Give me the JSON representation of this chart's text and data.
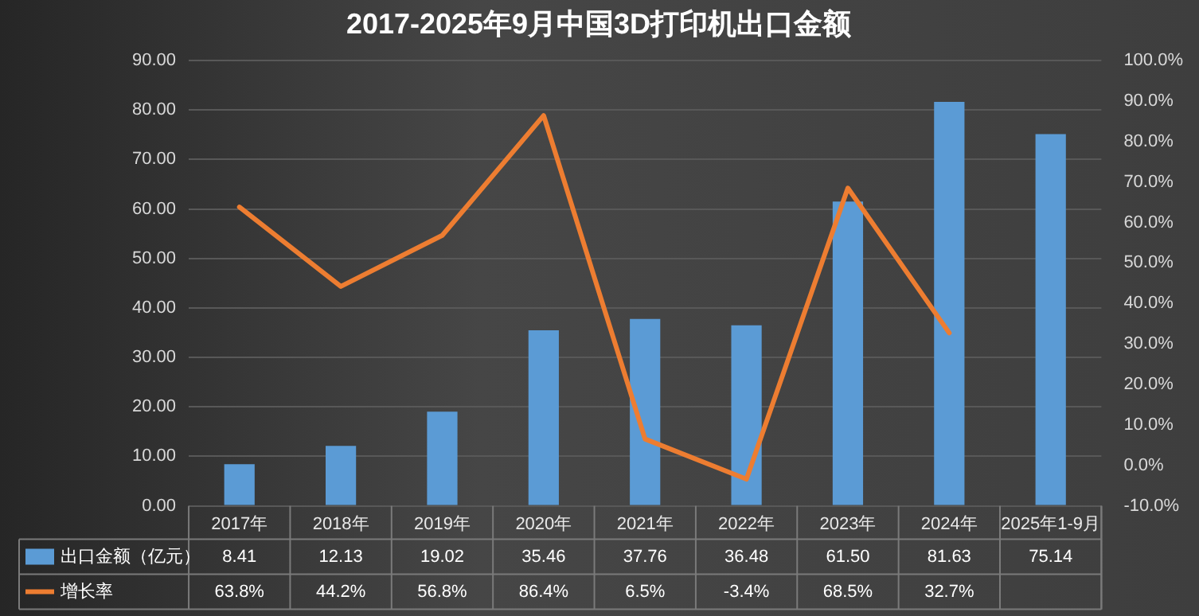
{
  "chart_data": {
    "type": "bar",
    "title": "2017-2025年9月中国3D打印机出口金额",
    "categories": [
      "2017年",
      "2018年",
      "2019年",
      "2020年",
      "2021年",
      "2022年",
      "2023年",
      "2024年",
      "2025年1-9月"
    ],
    "series": [
      {
        "name": "出口金额（亿元）",
        "color": "#5b9bd5",
        "values": [
          8.41,
          12.13,
          19.02,
          35.46,
          37.76,
          36.48,
          61.5,
          81.63,
          75.14
        ],
        "value_labels": [
          "8.41",
          "12.13",
          "19.02",
          "35.46",
          "37.76",
          "36.48",
          "61.50",
          "81.63",
          "75.14"
        ]
      },
      {
        "name": "增长率",
        "type": "line",
        "axis": "y2",
        "color": "#ed7d31",
        "values": [
          63.8,
          44.2,
          56.8,
          86.4,
          6.5,
          -3.4,
          68.5,
          32.7,
          null
        ],
        "value_labels": [
          "63.8%",
          "44.2%",
          "56.8%",
          "86.4%",
          "6.5%",
          "-3.4%",
          "68.5%",
          "32.7%",
          null
        ]
      }
    ],
    "ylim": [
      0,
      90
    ],
    "yticks": [
      {
        "value": 0,
        "label": "0.00"
      },
      {
        "value": 10,
        "label": "10.00"
      },
      {
        "value": 20,
        "label": "20.00"
      },
      {
        "value": 30,
        "label": "30.00"
      },
      {
        "value": 40,
        "label": "40.00"
      },
      {
        "value": 50,
        "label": "50.00"
      },
      {
        "value": 60,
        "label": "60.00"
      },
      {
        "value": 70,
        "label": "70.00"
      },
      {
        "value": 80,
        "label": "80.00"
      },
      {
        "value": 90,
        "label": "90.00"
      }
    ],
    "y2lim": [
      -10,
      100
    ],
    "y2ticks": [
      {
        "value": -10,
        "label": "-10.0%"
      },
      {
        "value": 0,
        "label": "0.0%"
      },
      {
        "value": 10,
        "label": "10.0%"
      },
      {
        "value": 20,
        "label": "20.0%"
      },
      {
        "value": 30,
        "label": "30.0%"
      },
      {
        "value": 40,
        "label": "40.0%"
      },
      {
        "value": 50,
        "label": "50.0%"
      },
      {
        "value": 60,
        "label": "60.0%"
      },
      {
        "value": 70,
        "label": "70.0%"
      },
      {
        "value": 80,
        "label": "80.0%"
      },
      {
        "value": 90,
        "label": "90.0%"
      },
      {
        "value": 100,
        "label": "100.0%"
      }
    ],
    "grid": "y",
    "legend": "bottom",
    "marker": "none",
    "line_style": "solid",
    "data_labels": true
  }
}
